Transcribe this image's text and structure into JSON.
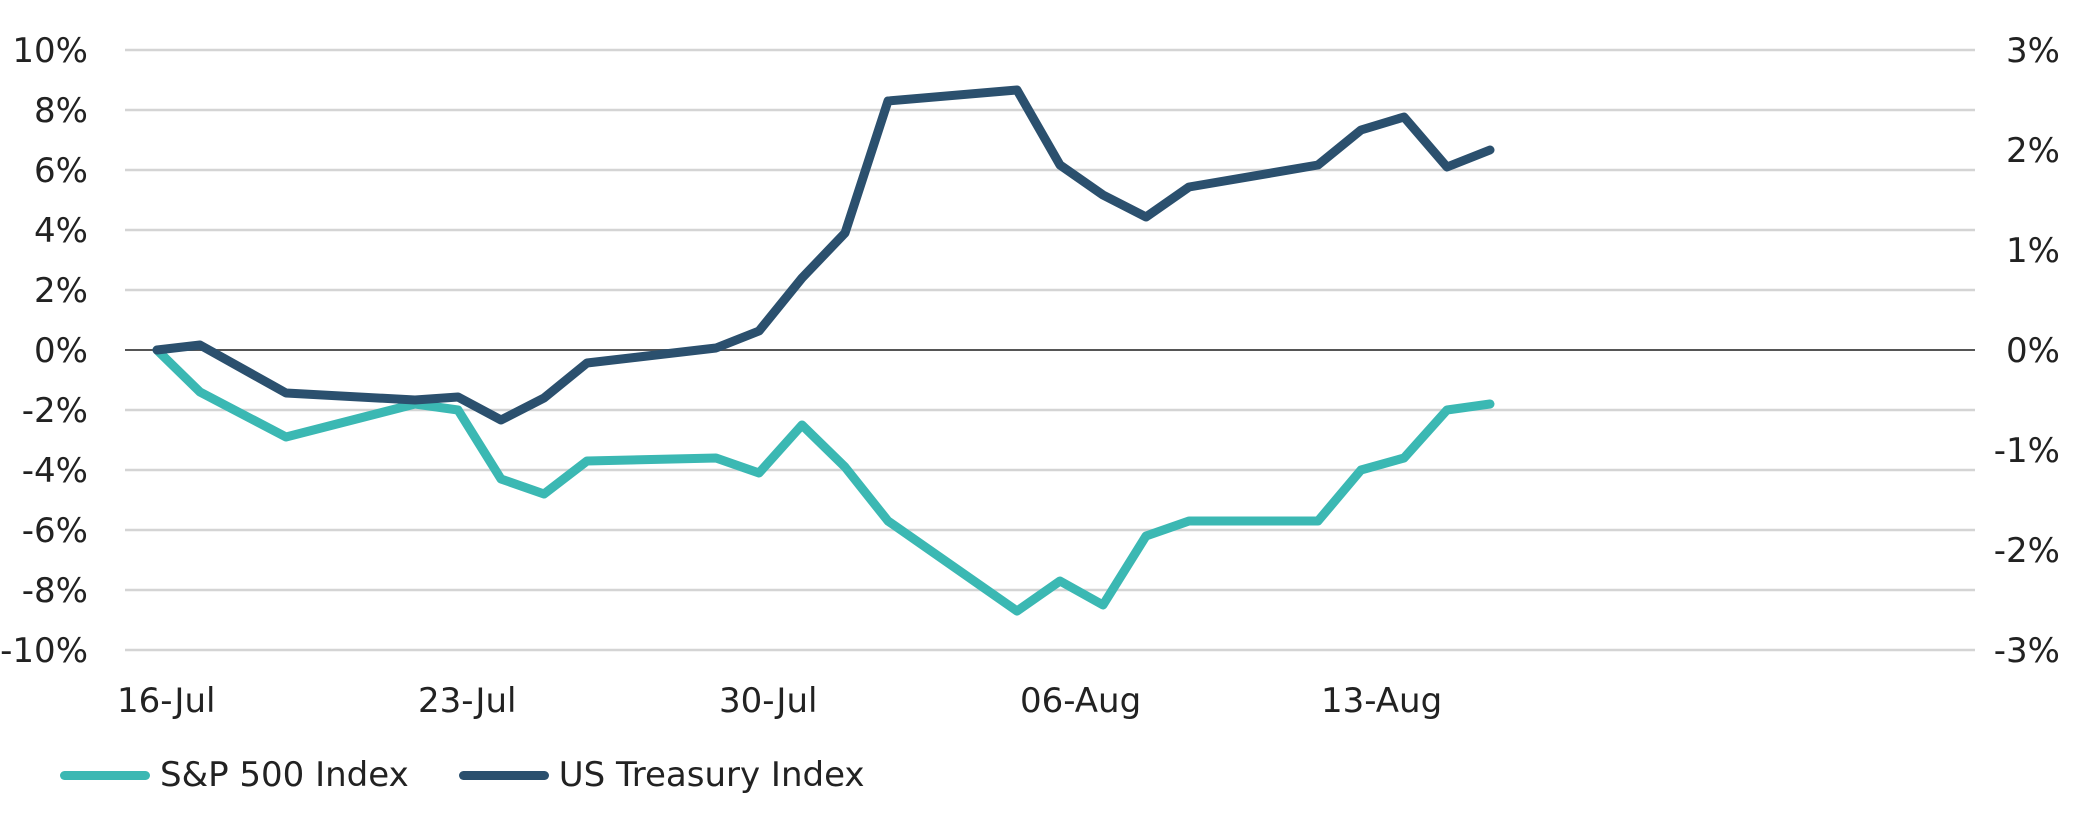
{
  "chart_data": {
    "type": "line",
    "title": "",
    "xlabel": "",
    "ylabel": "",
    "x": [
      "2018-07-16",
      "2018-07-17",
      "2018-07-19",
      "2018-07-22",
      "2018-07-23",
      "2018-07-24",
      "2018-07-25",
      "2018-07-26",
      "2018-07-29",
      "2018-07-30",
      "2018-07-31",
      "2018-08-01",
      "2018-08-02",
      "2018-08-05",
      "2018-08-06",
      "2018-08-07",
      "2018-08-08",
      "2018-08-09",
      "2018-08-12",
      "2018-08-13",
      "2018-08-14",
      "2018-08-15",
      "2018-08-16"
    ],
    "x_ticks": [
      "16-Jul",
      "23-Jul",
      "30-Jul",
      "06-Aug",
      "13-Aug"
    ],
    "y_left_ticks": [
      "10%",
      "8%",
      "6%",
      "4%",
      "2%",
      "0%",
      "-2%",
      "-4%",
      "-6%",
      "-8%",
      "-10%"
    ],
    "y_right_ticks": [
      "3%",
      "2%",
      "1%",
      "0%",
      "-1%",
      "-2%",
      "-3%"
    ],
    "ylim_left": [
      -10,
      10
    ],
    "ylim_right": [
      -3,
      3
    ],
    "grid": true,
    "legend_position": "bottom-left",
    "series": [
      {
        "name": "S&P 500 Index",
        "axis": "left",
        "color": "#3bb8b3",
        "points": [
          [
            "2018-07-16",
            0
          ],
          [
            "2018-07-17",
            -1.4
          ],
          [
            "2018-07-19",
            -2.9
          ],
          [
            "2018-07-22",
            -1.8
          ],
          [
            "2018-07-23",
            -2.0
          ],
          [
            "2018-07-24",
            -4.3
          ],
          [
            "2018-07-25",
            -4.8
          ],
          [
            "2018-07-26",
            -3.7
          ],
          [
            "2018-07-29",
            -3.6
          ],
          [
            "2018-07-30",
            -4.1
          ],
          [
            "2018-07-31",
            -2.5
          ],
          [
            "2018-08-01",
            -3.9
          ],
          [
            "2018-08-02",
            -5.7
          ],
          [
            "2018-08-05",
            -8.7
          ],
          [
            "2018-08-06",
            -7.7
          ],
          [
            "2018-08-07",
            -8.5
          ],
          [
            "2018-08-08",
            -6.2
          ],
          [
            "2018-08-09",
            -5.7
          ],
          [
            "2018-08-12",
            -5.7
          ],
          [
            "2018-08-13",
            -4.0
          ],
          [
            "2018-08-14",
            -3.6
          ],
          [
            "2018-08-15",
            -2.0
          ],
          [
            "2018-08-16",
            -1.8
          ]
        ]
      },
      {
        "name": "US Treasury Index",
        "axis": "right",
        "color": "#2b506e",
        "points": [
          [
            "2018-07-16",
            0
          ],
          [
            "2018-07-17",
            0.05
          ],
          [
            "2018-07-19",
            -0.43
          ],
          [
            "2018-07-22",
            -0.5
          ],
          [
            "2018-07-23",
            -0.47
          ],
          [
            "2018-07-24",
            -0.7
          ],
          [
            "2018-07-25",
            -0.48
          ],
          [
            "2018-07-26",
            -0.13
          ],
          [
            "2018-07-29",
            0.02
          ],
          [
            "2018-07-30",
            0.19
          ],
          [
            "2018-07-31",
            0.72
          ],
          [
            "2018-08-01",
            1.17
          ],
          [
            "2018-08-02",
            2.49
          ],
          [
            "2018-08-05",
            2.6
          ],
          [
            "2018-08-06",
            1.85
          ],
          [
            "2018-08-07",
            1.55
          ],
          [
            "2018-08-08",
            1.33
          ],
          [
            "2018-08-09",
            1.63
          ],
          [
            "2018-08-12",
            1.85
          ],
          [
            "2018-08-13",
            2.2
          ],
          [
            "2018-08-14",
            2.33
          ],
          [
            "2018-08-15",
            1.83
          ],
          [
            "2018-08-16",
            2.0
          ]
        ]
      }
    ]
  }
}
